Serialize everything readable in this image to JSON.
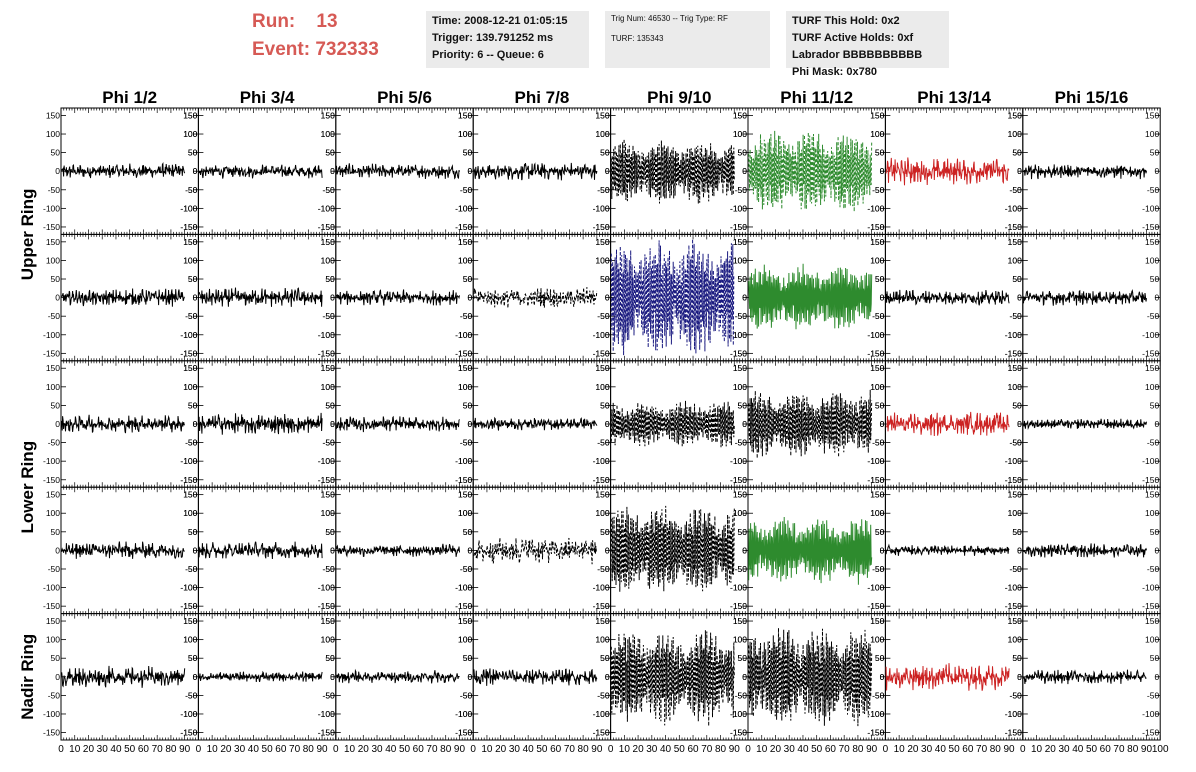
{
  "header": {
    "run_label": "Run:",
    "run_value": "13",
    "event_label": "Event:",
    "event_value": "732333"
  },
  "info": {
    "time": "Time: 2008-12-21 01:05:15",
    "trigger": "Trigger: 139.791252 ms",
    "priority": "Priority: 6 -- Queue: 6",
    "trig_num": "Trig Num: 46530 -- Trig Type: RF",
    "turf": "TURF: 135343",
    "turf_hold": "TURF This Hold: 0x2",
    "turf_active": "TURF Active Holds: 0xf",
    "labrador": "Labrador BBBBBBBBBB",
    "phi_mask": "Phi Mask: 0x780"
  },
  "colors": {
    "black": "#000000",
    "navy": "#1a1a80",
    "green": "#2e8b2e",
    "red": "#cc2222",
    "header_red": "#d65a55",
    "box_gray": "#ebebeb"
  },
  "chart_data": {
    "type": "line",
    "columns": [
      "Phi 1/2",
      "Phi 3/4",
      "Phi 5/6",
      "Phi 7/8",
      "Phi 9/10",
      "Phi 11/12",
      "Phi 13/14",
      "Phi 15/16"
    ],
    "rows": [
      "Upper Ring",
      "Upper Ring",
      "Lower Ring",
      "Lower Ring",
      "Nadir Ring"
    ],
    "row_labels": [
      "Upper Ring",
      "Lower Ring",
      "Nadir Ring"
    ],
    "xlim": [
      0,
      100
    ],
    "ylim": [
      -170,
      170
    ],
    "x_ticks": [
      0,
      10,
      20,
      30,
      40,
      50,
      60,
      70,
      80,
      90,
      100
    ],
    "x_tick_labels": [
      "0",
      "10",
      "20",
      "30",
      "40",
      "50",
      "60",
      "70",
      "80",
      "90",
      "100"
    ],
    "y_ticks": [
      -150,
      -100,
      -50,
      0,
      50,
      100,
      150
    ],
    "y_tick_labels": [
      "-150",
      "-100",
      "-50",
      "0",
      "50",
      "100",
      "150"
    ],
    "panels": [
      [
        {
          "style": "solid",
          "color": "black",
          "amp": 22
        },
        {
          "style": "solid",
          "color": "black",
          "amp": 20
        },
        {
          "style": "solid",
          "color": "black",
          "amp": 22
        },
        {
          "style": "solid",
          "color": "black",
          "amp": 25
        },
        {
          "style": "dashed",
          "color": "black",
          "amp": 80
        },
        {
          "style": "dashed",
          "color": "green",
          "amp": 100
        },
        {
          "style": "solid",
          "color": "red",
          "amp": 40
        },
        {
          "style": "solid",
          "color": "black",
          "amp": 22
        }
      ],
      [
        {
          "style": "solid",
          "color": "black",
          "amp": 25
        },
        {
          "style": "solid",
          "color": "black",
          "amp": 28
        },
        {
          "style": "solid",
          "color": "black",
          "amp": 22
        },
        {
          "style": "dashed",
          "color": "black",
          "amp": 30
        },
        {
          "style": "dashed",
          "color": "navy",
          "amp": 140
        },
        {
          "style": "solid",
          "color": "green",
          "amp": 80
        },
        {
          "style": "solid",
          "color": "black",
          "amp": 22
        },
        {
          "style": "solid",
          "color": "black",
          "amp": 22
        }
      ],
      [
        {
          "style": "solid",
          "color": "black",
          "amp": 25
        },
        {
          "style": "solid",
          "color": "black",
          "amp": 30
        },
        {
          "style": "solid",
          "color": "black",
          "amp": 22
        },
        {
          "style": "solid",
          "color": "black",
          "amp": 18
        },
        {
          "style": "dashed",
          "color": "black",
          "amp": 55
        },
        {
          "style": "dashed",
          "color": "black",
          "amp": 80
        },
        {
          "style": "solid",
          "color": "red",
          "amp": 35
        },
        {
          "style": "solid",
          "color": "black",
          "amp": 15
        }
      ],
      [
        {
          "style": "solid",
          "color": "black",
          "amp": 25
        },
        {
          "style": "solid",
          "color": "black",
          "amp": 25
        },
        {
          "style": "solid",
          "color": "black",
          "amp": 18
        },
        {
          "style": "dashed",
          "color": "black",
          "amp": 40
        },
        {
          "style": "dashed",
          "color": "black",
          "amp": 110
        },
        {
          "style": "solid",
          "color": "green",
          "amp": 80
        },
        {
          "style": "solid",
          "color": "black",
          "amp": 15
        },
        {
          "style": "solid",
          "color": "black",
          "amp": 20
        }
      ],
      [
        {
          "style": "solid",
          "color": "black",
          "amp": 30
        },
        {
          "style": "solid",
          "color": "black",
          "amp": 15
        },
        {
          "style": "solid",
          "color": "black",
          "amp": 18
        },
        {
          "style": "solid",
          "color": "black",
          "amp": 25
        },
        {
          "style": "dashed",
          "color": "black",
          "amp": 115
        },
        {
          "style": "dashed",
          "color": "black",
          "amp": 120
        },
        {
          "style": "solid",
          "color": "red",
          "amp": 38
        },
        {
          "style": "solid",
          "color": "black",
          "amp": 20
        }
      ]
    ]
  }
}
